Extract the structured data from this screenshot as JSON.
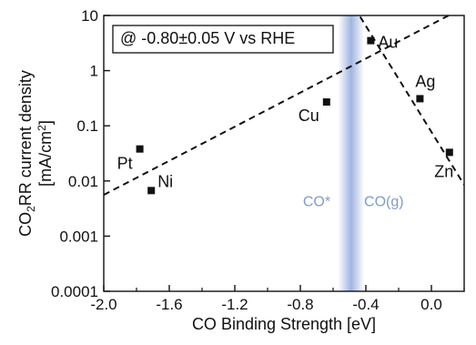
{
  "chart_data": {
    "type": "scatter",
    "annotation": "@ -0.80±0.05 V vs RHE",
    "xlabel": "CO Binding Strength [eV]",
    "ylabel_line1_prefix": "CO",
    "ylabel_line1_sub": "2",
    "ylabel_line1_suffix": "RR current density",
    "ylabel_line2_prefix": "[mA/cm",
    "ylabel_line2_sup": "2",
    "ylabel_line2_suffix": "]",
    "xlim": [
      -2.0,
      0.2
    ],
    "ylim": [
      0.0001,
      10
    ],
    "yscale": "log",
    "x_ticks": [
      -2.0,
      -1.6,
      -1.2,
      -0.8,
      -0.4,
      0.0
    ],
    "x_tick_labels": [
      "-2.0",
      "-1.6",
      "-1.2",
      "-0.8",
      "-0.4",
      "0.0"
    ],
    "y_ticks": [
      0.0001,
      0.001,
      0.01,
      0.1,
      1,
      10
    ],
    "y_tick_labels": [
      "0.0001",
      "0.001",
      "0.01",
      "0.1",
      "1",
      "10"
    ],
    "points": [
      {
        "label": "Pt",
        "x": -1.78,
        "y": 0.038
      },
      {
        "label": "Ni",
        "x": -1.71,
        "y": 0.0067
      },
      {
        "label": "Cu",
        "x": -0.64,
        "y": 0.27
      },
      {
        "label": "Au",
        "x": -0.37,
        "y": 3.5
      },
      {
        "label": "Ag",
        "x": -0.07,
        "y": 0.31
      },
      {
        "label": "Zn",
        "x": 0.11,
        "y": 0.033
      }
    ],
    "fit_lines": [
      {
        "x": [
          -2.0,
          0.2
        ],
        "y": [
          0.0056,
          14
        ]
      },
      {
        "x": [
          -0.47,
          0.2
        ],
        "y": [
          14,
          0.0085
        ]
      }
    ],
    "region": {
      "x_center": -0.49,
      "half_width": 0.08,
      "color": "#8fa8dc"
    },
    "region_labels": [
      {
        "text": "CO*",
        "x": -0.7,
        "y": 0.0035
      },
      {
        "text": "CO(g)",
        "x": -0.29,
        "y": 0.0035
      }
    ],
    "colors": {
      "region_text": "#7f9cc9",
      "marker": "#111111"
    }
  }
}
